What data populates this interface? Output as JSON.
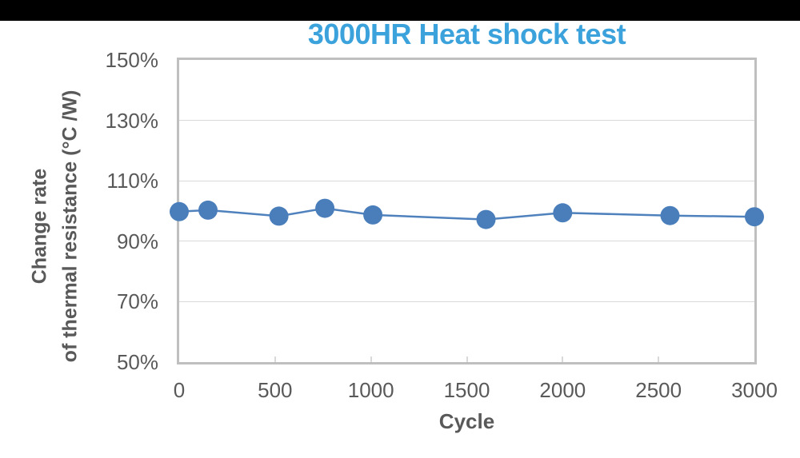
{
  "page": {
    "top_bar_color": "#000000",
    "background_color": "#ffffff"
  },
  "chart": {
    "title": "3000HR Heat shock test",
    "title_color": "#3ba2dc",
    "x_axis_title": "Cycle",
    "y_axis_title_line1": "Change rate",
    "y_axis_title_line2": "of thermal resistance (°C /W)",
    "axis_text_color": "#595959",
    "plot_border_color": "#bfbfbf",
    "gridline_color": "#d9d9d9",
    "marker_color": "#4a7ebb",
    "line_color": "#4f81bd"
  },
  "chart_data": {
    "type": "line",
    "title": "3000HR Heat shock test",
    "xlabel": "Cycle",
    "ylabel": "Change rate of thermal resistance (°C /W)",
    "x": [
      0,
      150,
      520,
      760,
      1010,
      1600,
      2000,
      2560,
      3000
    ],
    "series": [
      {
        "name": "Change rate of thermal resistance",
        "values": [
          99.8,
          100.3,
          98.3,
          100.9,
          98.7,
          97.2,
          99.4,
          98.5,
          98.1
        ]
      }
    ],
    "xlim": [
      0,
      3000
    ],
    "ylim": [
      50,
      150
    ],
    "x_ticks": [
      0,
      500,
      1000,
      1500,
      2000,
      2500,
      3000
    ],
    "x_tick_labels": [
      "0",
      "500",
      "1000",
      "1500",
      "2000",
      "2500",
      "3000"
    ],
    "y_ticks": [
      150,
      130,
      110,
      90,
      70,
      50
    ],
    "y_tick_labels": [
      "150%",
      "130%",
      "110%",
      "90%",
      "70%",
      "50%"
    ],
    "grid": "horizontal",
    "legend": "none",
    "marker": "circle"
  }
}
